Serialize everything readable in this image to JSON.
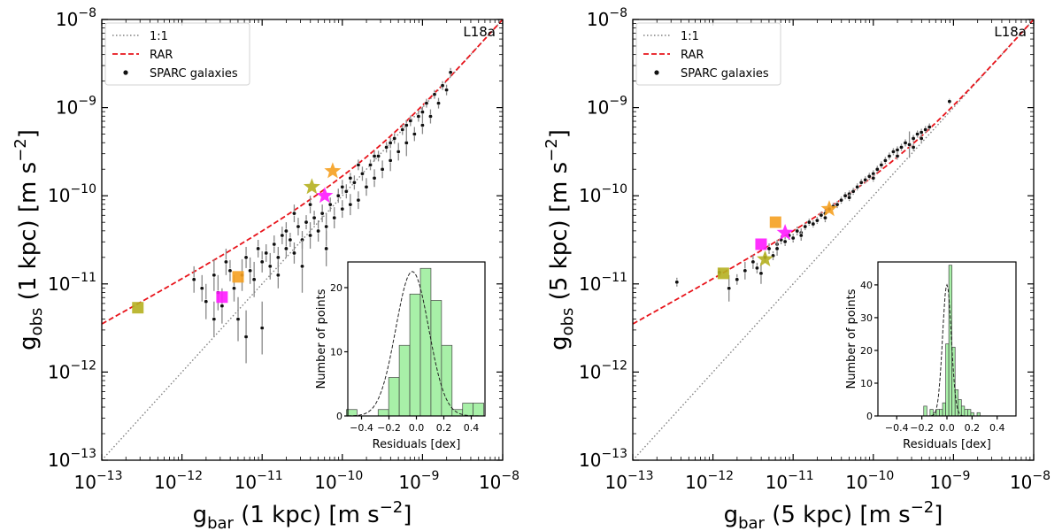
{
  "chart_data": [
    {
      "type": "scatter",
      "panel": "left",
      "corner_label": "L18a",
      "xlabel": {
        "main": "g",
        "sub": "bar",
        "rest": " (1 kpc) [m s",
        "exp": "−2",
        "close": "]"
      },
      "ylabel": {
        "main": "g",
        "sub": "obs",
        "rest": " (1 kpc) [m s",
        "exp": "−2",
        "close": "]"
      },
      "xlim_log10": [
        -13,
        -8
      ],
      "ylim_log10": [
        -13,
        -8
      ],
      "x_tick_labels": [
        {
          "base": "10",
          "exp": "−13"
        },
        {
          "base": "10",
          "exp": "−12"
        },
        {
          "base": "10",
          "exp": "−11"
        },
        {
          "base": "10",
          "exp": "−10"
        },
        {
          "base": "10",
          "exp": "−9"
        },
        {
          "base": "10",
          "exp": "−8"
        }
      ],
      "y_tick_labels": [
        {
          "base": "10",
          "exp": "−13"
        },
        {
          "base": "10",
          "exp": "−12"
        },
        {
          "base": "10",
          "exp": "−11"
        },
        {
          "base": "10",
          "exp": "−10"
        },
        {
          "base": "10",
          "exp": "−9"
        },
        {
          "base": "10",
          "exp": "−8"
        }
      ],
      "legend": {
        "placement": "top-left",
        "entries": [
          "1:1",
          "RAR",
          "SPARC galaxies"
        ]
      },
      "series_style": {
        "one_to_one": "#808080",
        "rar": "#e8141b"
      },
      "galaxies_log10": [
        [
          -11.85,
          -10.95,
          0.15
        ],
        [
          -11.75,
          -11.05,
          0.15
        ],
        [
          -11.7,
          -11.2,
          0.2
        ],
        [
          -11.6,
          -10.9,
          0.18
        ],
        [
          -11.55,
          -11.1,
          0.2
        ],
        [
          -11.5,
          -11.25,
          0.2
        ],
        [
          -11.45,
          -10.75,
          0.15
        ],
        [
          -11.4,
          -10.85,
          0.12
        ],
        [
          -11.35,
          -11.05,
          0.15
        ],
        [
          -11.3,
          -11.4,
          0.25
        ],
        [
          -11.25,
          -10.9,
          0.18
        ],
        [
          -11.2,
          -10.7,
          0.12
        ],
        [
          -11.15,
          -10.85,
          0.15
        ],
        [
          -11.1,
          -10.95,
          0.2
        ],
        [
          -11.05,
          -10.6,
          0.1
        ],
        [
          -11.0,
          -10.75,
          0.12
        ],
        [
          -10.95,
          -10.65,
          0.1
        ],
        [
          -10.9,
          -10.8,
          0.15
        ],
        [
          -10.85,
          -10.55,
          0.1
        ],
        [
          -10.8,
          -10.7,
          0.12
        ],
        [
          -10.75,
          -10.45,
          0.1
        ],
        [
          -10.7,
          -10.6,
          0.1
        ],
        [
          -10.65,
          -10.5,
          0.08
        ],
        [
          -10.6,
          -10.65,
          0.12
        ],
        [
          -10.55,
          -10.35,
          0.1
        ],
        [
          -10.5,
          -10.5,
          0.1
        ],
        [
          -10.45,
          -10.3,
          0.08
        ],
        [
          -10.4,
          -10.45,
          0.15
        ],
        [
          -10.35,
          -10.25,
          0.08
        ],
        [
          -10.3,
          -10.4,
          0.12
        ],
        [
          -10.25,
          -10.2,
          0.1
        ],
        [
          -10.2,
          -10.35,
          0.15
        ],
        [
          -10.15,
          -10.1,
          0.08
        ],
        [
          -10.1,
          -10.25,
          0.12
        ],
        [
          -10.05,
          -10.0,
          0.08
        ],
        [
          -10.0,
          -10.15,
          0.1
        ],
        [
          -9.95,
          -9.95,
          0.08
        ],
        [
          -9.9,
          -10.1,
          0.12
        ],
        [
          -9.85,
          -9.85,
          0.08
        ],
        [
          -9.8,
          -10.05,
          0.1
        ],
        [
          -9.75,
          -9.75,
          0.08
        ],
        [
          -9.7,
          -9.9,
          0.1
        ],
        [
          -9.65,
          -9.65,
          0.06
        ],
        [
          -9.6,
          -9.8,
          0.1
        ],
        [
          -9.55,
          -9.55,
          0.06
        ],
        [
          -9.5,
          -9.7,
          0.1
        ],
        [
          -9.45,
          -9.45,
          0.06
        ],
        [
          -9.4,
          -9.6,
          0.12
        ],
        [
          -9.35,
          -9.35,
          0.06
        ],
        [
          -9.3,
          -9.5,
          0.1
        ],
        [
          -9.25,
          -9.25,
          0.06
        ],
        [
          -9.2,
          -9.4,
          0.15
        ],
        [
          -9.15,
          -9.15,
          0.06
        ],
        [
          -9.1,
          -9.3,
          0.08
        ],
        [
          -9.05,
          -9.1,
          0.06
        ],
        [
          -9.0,
          -9.2,
          0.1
        ],
        [
          -8.95,
          -8.95,
          0.05
        ],
        [
          -8.9,
          -9.1,
          0.08
        ],
        [
          -8.85,
          -8.85,
          0.05
        ],
        [
          -8.8,
          -8.95,
          0.06
        ],
        [
          -8.75,
          -8.75,
          0.05
        ],
        [
          -8.7,
          -8.8,
          0.06
        ],
        [
          -8.65,
          -8.6,
          0.05
        ],
        [
          -11.0,
          -11.5,
          0.3
        ],
        [
          -10.8,
          -10.9,
          0.15
        ],
        [
          -10.5,
          -10.8,
          0.3
        ],
        [
          -10.2,
          -10.6,
          0.2
        ],
        [
          -10.0,
          -9.9,
          0.08
        ],
        [
          -9.6,
          -9.55,
          0.06
        ],
        [
          -9.4,
          -9.4,
          0.06
        ],
        [
          -9.2,
          -9.2,
          0.06
        ],
        [
          -9.0,
          -9.05,
          0.06
        ],
        [
          -10.6,
          -10.2,
          0.1
        ],
        [
          -10.4,
          -10.1,
          0.1
        ],
        [
          -9.8,
          -9.65,
          0.06
        ],
        [
          -10.7,
          -10.4,
          0.1
        ],
        [
          -9.9,
          -9.8,
          0.06
        ],
        [
          -11.2,
          -11.6,
          0.3
        ],
        [
          -11.6,
          -11.4,
          0.2
        ]
      ],
      "highlighted": [
        {
          "shape": "square",
          "color": "#b5b020",
          "x": -12.55,
          "y": -11.27
        },
        {
          "shape": "square",
          "color": "#ff1aff",
          "x": -11.5,
          "y": -11.15
        },
        {
          "shape": "square",
          "color": "#f5a020",
          "x": -11.3,
          "y": -10.92
        },
        {
          "shape": "star",
          "color": "#b5b020",
          "x": -10.38,
          "y": -9.9
        },
        {
          "shape": "star",
          "color": "#f5a020",
          "x": -10.12,
          "y": -9.72
        },
        {
          "shape": "star",
          "color": "#ff1aff",
          "x": -10.22,
          "y": -10.0
        }
      ],
      "inset": {
        "xlabel": "Residuals [dex]",
        "ylabel": "Number of points",
        "xlim": [
          -0.5,
          0.5
        ],
        "ylim": [
          0,
          24
        ],
        "x_ticks": [
          "−0.4",
          "−0.2",
          "0.0",
          "0.2",
          "0.4"
        ],
        "x_tick_values": [
          -0.4,
          -0.2,
          0,
          0.2,
          0.4
        ],
        "y_ticks": [
          "0",
          "10",
          "20"
        ],
        "y_tick_values": [
          0,
          10,
          20
        ],
        "bin_width": 0.077,
        "bins_left": [
          -0.51,
          -0.433,
          -0.356,
          -0.279,
          -0.202,
          -0.125,
          -0.048,
          0.029,
          0.106,
          0.183,
          0.26,
          0.337,
          0.414
        ],
        "counts": [
          1,
          0,
          0,
          1,
          6,
          11,
          19,
          23,
          18,
          11,
          1,
          2,
          2
        ],
        "gauss_mu": -0.03,
        "gauss_sigma": 0.12,
        "gauss_amp": 22.5,
        "bar_color": "#a8f0a8"
      }
    },
    {
      "type": "scatter",
      "panel": "right",
      "corner_label": "L18a",
      "xlabel": {
        "main": "g",
        "sub": "bar",
        "rest": " (5 kpc) [m s",
        "exp": "−2",
        "close": "]"
      },
      "ylabel": {
        "main": "g",
        "sub": "obs",
        "rest": " (5 kpc) [m s",
        "exp": "−2",
        "close": "]"
      },
      "xlim_log10": [
        -13,
        -8
      ],
      "ylim_log10": [
        -13,
        -8
      ],
      "x_tick_labels": [
        {
          "base": "10",
          "exp": "−13"
        },
        {
          "base": "10",
          "exp": "−12"
        },
        {
          "base": "10",
          "exp": "−11"
        },
        {
          "base": "10",
          "exp": "−10"
        },
        {
          "base": "10",
          "exp": "−9"
        },
        {
          "base": "10",
          "exp": "−8"
        }
      ],
      "y_tick_labels": [
        {
          "base": "10",
          "exp": "−13"
        },
        {
          "base": "10",
          "exp": "−12"
        },
        {
          "base": "10",
          "exp": "−11"
        },
        {
          "base": "10",
          "exp": "−10"
        },
        {
          "base": "10",
          "exp": "−9"
        },
        {
          "base": "10",
          "exp": "−8"
        }
      ],
      "legend": {
        "placement": "top-left",
        "entries": [
          "1:1",
          "RAR",
          "SPARC galaxies"
        ]
      },
      "series_style": {
        "one_to_one": "#808080",
        "rar": "#e8141b"
      },
      "galaxies_log10": [
        [
          -12.45,
          -10.98,
          0.05
        ],
        [
          -11.92,
          -10.87,
          0.05
        ],
        [
          -11.7,
          -10.95,
          0.06
        ],
        [
          -11.6,
          -10.85,
          0.1
        ],
        [
          -11.5,
          -10.75,
          0.08
        ],
        [
          -11.45,
          -10.82,
          0.06
        ],
        [
          -11.35,
          -10.7,
          0.06
        ],
        [
          -11.3,
          -10.6,
          0.06
        ],
        [
          -11.25,
          -10.68,
          0.05
        ],
        [
          -11.2,
          -10.55,
          0.05
        ],
        [
          -11.15,
          -10.5,
          0.05
        ],
        [
          -11.1,
          -10.52,
          0.05
        ],
        [
          -11.05,
          -10.45,
          0.05
        ],
        [
          -11.0,
          -10.48,
          0.05
        ],
        [
          -10.95,
          -10.4,
          0.05
        ],
        [
          -10.9,
          -10.42,
          0.05
        ],
        [
          -10.85,
          -10.35,
          0.04
        ],
        [
          -10.8,
          -10.3,
          0.04
        ],
        [
          -10.75,
          -10.32,
          0.04
        ],
        [
          -10.7,
          -10.28,
          0.04
        ],
        [
          -10.65,
          -10.22,
          0.04
        ],
        [
          -10.6,
          -10.2,
          0.04
        ],
        [
          -10.55,
          -10.15,
          0.04
        ],
        [
          -10.5,
          -10.12,
          0.04
        ],
        [
          -10.45,
          -10.1,
          0.04
        ],
        [
          -10.4,
          -10.05,
          0.04
        ],
        [
          -10.35,
          -10.0,
          0.04
        ],
        [
          -10.3,
          -9.98,
          0.04
        ],
        [
          -10.25,
          -9.95,
          0.04
        ],
        [
          -10.2,
          -9.9,
          0.04
        ],
        [
          -10.15,
          -9.85,
          0.04
        ],
        [
          -10.1,
          -9.82,
          0.04
        ],
        [
          -10.05,
          -9.78,
          0.04
        ],
        [
          -10.0,
          -9.75,
          0.04
        ],
        [
          -9.95,
          -9.7,
          0.04
        ],
        [
          -9.9,
          -9.65,
          0.04
        ],
        [
          -9.85,
          -9.6,
          0.04
        ],
        [
          -9.8,
          -9.55,
          0.04
        ],
        [
          -9.75,
          -9.5,
          0.04
        ],
        [
          -9.7,
          -9.48,
          0.04
        ],
        [
          -9.65,
          -9.45,
          0.04
        ],
        [
          -9.6,
          -9.4,
          0.04
        ],
        [
          -9.55,
          -9.42,
          0.15
        ],
        [
          -9.5,
          -9.35,
          0.04
        ],
        [
          -9.45,
          -9.3,
          0.04
        ],
        [
          -9.4,
          -9.28,
          0.04
        ],
        [
          -9.35,
          -9.25,
          0.04
        ],
        [
          -9.3,
          -9.22,
          0.04
        ],
        [
          -9.05,
          -8.93,
          0.03
        ],
        [
          -11.2,
          -10.6,
          0.08
        ],
        [
          -10.9,
          -10.45,
          0.06
        ],
        [
          -10.6,
          -10.25,
          0.05
        ],
        [
          -10.3,
          -10.02,
          0.04
        ],
        [
          -10.0,
          -9.8,
          0.04
        ],
        [
          -9.7,
          -9.55,
          0.04
        ],
        [
          -9.5,
          -9.45,
          0.04
        ],
        [
          -9.4,
          -9.35,
          0.04
        ],
        [
          -11.4,
          -10.88,
          0.12
        ],
        [
          -11.8,
          -11.05,
          0.15
        ]
      ],
      "highlighted": [
        {
          "shape": "square",
          "color": "#b5b020",
          "x": -11.87,
          "y": -10.88
        },
        {
          "shape": "square",
          "color": "#ff1aff",
          "x": -11.4,
          "y": -10.55
        },
        {
          "shape": "square",
          "color": "#f5a020",
          "x": -11.22,
          "y": -10.3
        },
        {
          "shape": "star",
          "color": "#b5b020",
          "x": -11.35,
          "y": -10.72
        },
        {
          "shape": "star",
          "color": "#ff1aff",
          "x": -11.1,
          "y": -10.42
        },
        {
          "shape": "star",
          "color": "#f5a020",
          "x": -10.55,
          "y": -10.15
        }
      ],
      "inset": {
        "xlabel": "Residuals [dex]",
        "ylabel": "Number of points",
        "xlim": [
          -0.55,
          0.55
        ],
        "ylim": [
          0,
          47
        ],
        "x_ticks": [
          "−0.4",
          "−0.2",
          "0.0",
          "0.2",
          "0.4"
        ],
        "x_tick_values": [
          -0.4,
          -0.2,
          0,
          0.2,
          0.4
        ],
        "y_ticks": [
          "0",
          "10",
          "20",
          "30",
          "40"
        ],
        "y_tick_values": [
          0,
          10,
          20,
          30,
          40
        ],
        "bin_width": 0.025,
        "bins_left": [
          -0.185,
          -0.16,
          -0.135,
          -0.11,
          -0.085,
          -0.06,
          -0.035,
          -0.01,
          0.015,
          0.04,
          0.065,
          0.09,
          0.115,
          0.14,
          0.165,
          0.19,
          0.215,
          0.24
        ],
        "counts": [
          3,
          0,
          2,
          1,
          2,
          2,
          4,
          22,
          46,
          21,
          8,
          5,
          3,
          2,
          2,
          1,
          0,
          1
        ],
        "gauss_mu": 0.0,
        "gauss_sigma": 0.035,
        "gauss_amp": 40,
        "bar_color": "#a8f0a8"
      }
    }
  ]
}
